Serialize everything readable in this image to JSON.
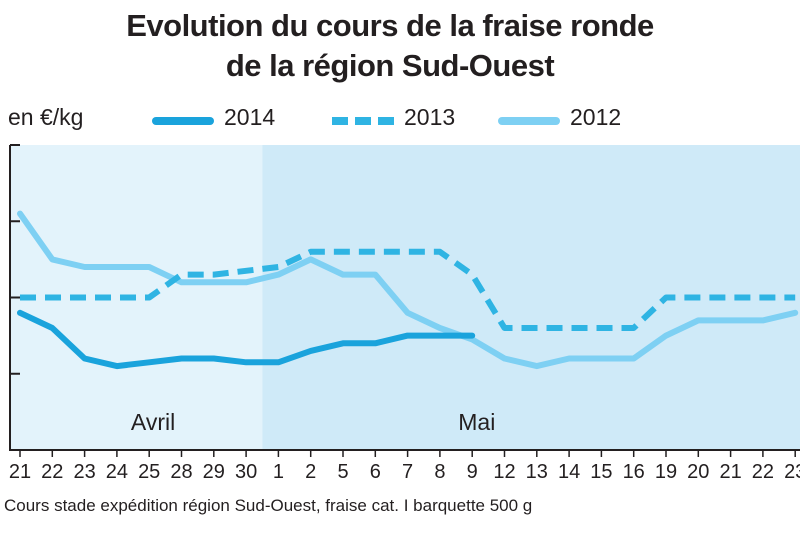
{
  "chart_data": {
    "type": "line",
    "title_lines": [
      "Evolution du cours de la fraise ronde",
      "de la région Sud-Ouest"
    ],
    "ylabel": "en €/kg",
    "xlabel": "",
    "categories": [
      "21",
      "22",
      "23",
      "24",
      "25",
      "28",
      "29",
      "30",
      "1",
      "2",
      "5",
      "6",
      "7",
      "8",
      "9",
      "12",
      "13",
      "14",
      "15",
      "16",
      "19",
      "20",
      "21",
      "22",
      "23"
    ],
    "months": [
      {
        "label": "Avril",
        "start_index": 0,
        "end_index": 7
      },
      {
        "label": "Mai",
        "start_index": 8,
        "end_index": 24
      }
    ],
    "y_ticks_labeled": false,
    "grid": false,
    "legend_position": "top",
    "series": [
      {
        "name": "2014",
        "style": "solid",
        "color": "#1aa3dc",
        "values": [
          1.8,
          1.6,
          1.2,
          1.1,
          1.15,
          1.2,
          1.2,
          1.15,
          1.15,
          1.3,
          1.4,
          1.4,
          1.5,
          1.5,
          1.5,
          null,
          null,
          null,
          null,
          null,
          null,
          null,
          null,
          null,
          null
        ]
      },
      {
        "name": "2013",
        "style": "dashed",
        "color": "#2fb4e3",
        "values": [
          2.0,
          2.0,
          2.0,
          2.0,
          2.0,
          2.3,
          2.3,
          2.35,
          2.4,
          2.6,
          2.6,
          2.6,
          2.6,
          2.6,
          2.3,
          1.6,
          1.6,
          1.6,
          1.6,
          1.6,
          2.0,
          2.0,
          2.0,
          2.0,
          2.0
        ]
      },
      {
        "name": "2012",
        "style": "solid",
        "color": "#7ed0f3",
        "values": [
          3.1,
          2.5,
          2.4,
          2.4,
          2.4,
          2.2,
          2.2,
          2.2,
          2.3,
          2.5,
          2.3,
          2.3,
          1.8,
          1.6,
          1.45,
          1.2,
          1.1,
          1.2,
          1.2,
          1.2,
          1.5,
          1.7,
          1.7,
          1.7,
          1.8
        ]
      }
    ],
    "footnote": "Cours stade expédition région Sud-Ouest, fraise cat. I barquette 500 g"
  }
}
